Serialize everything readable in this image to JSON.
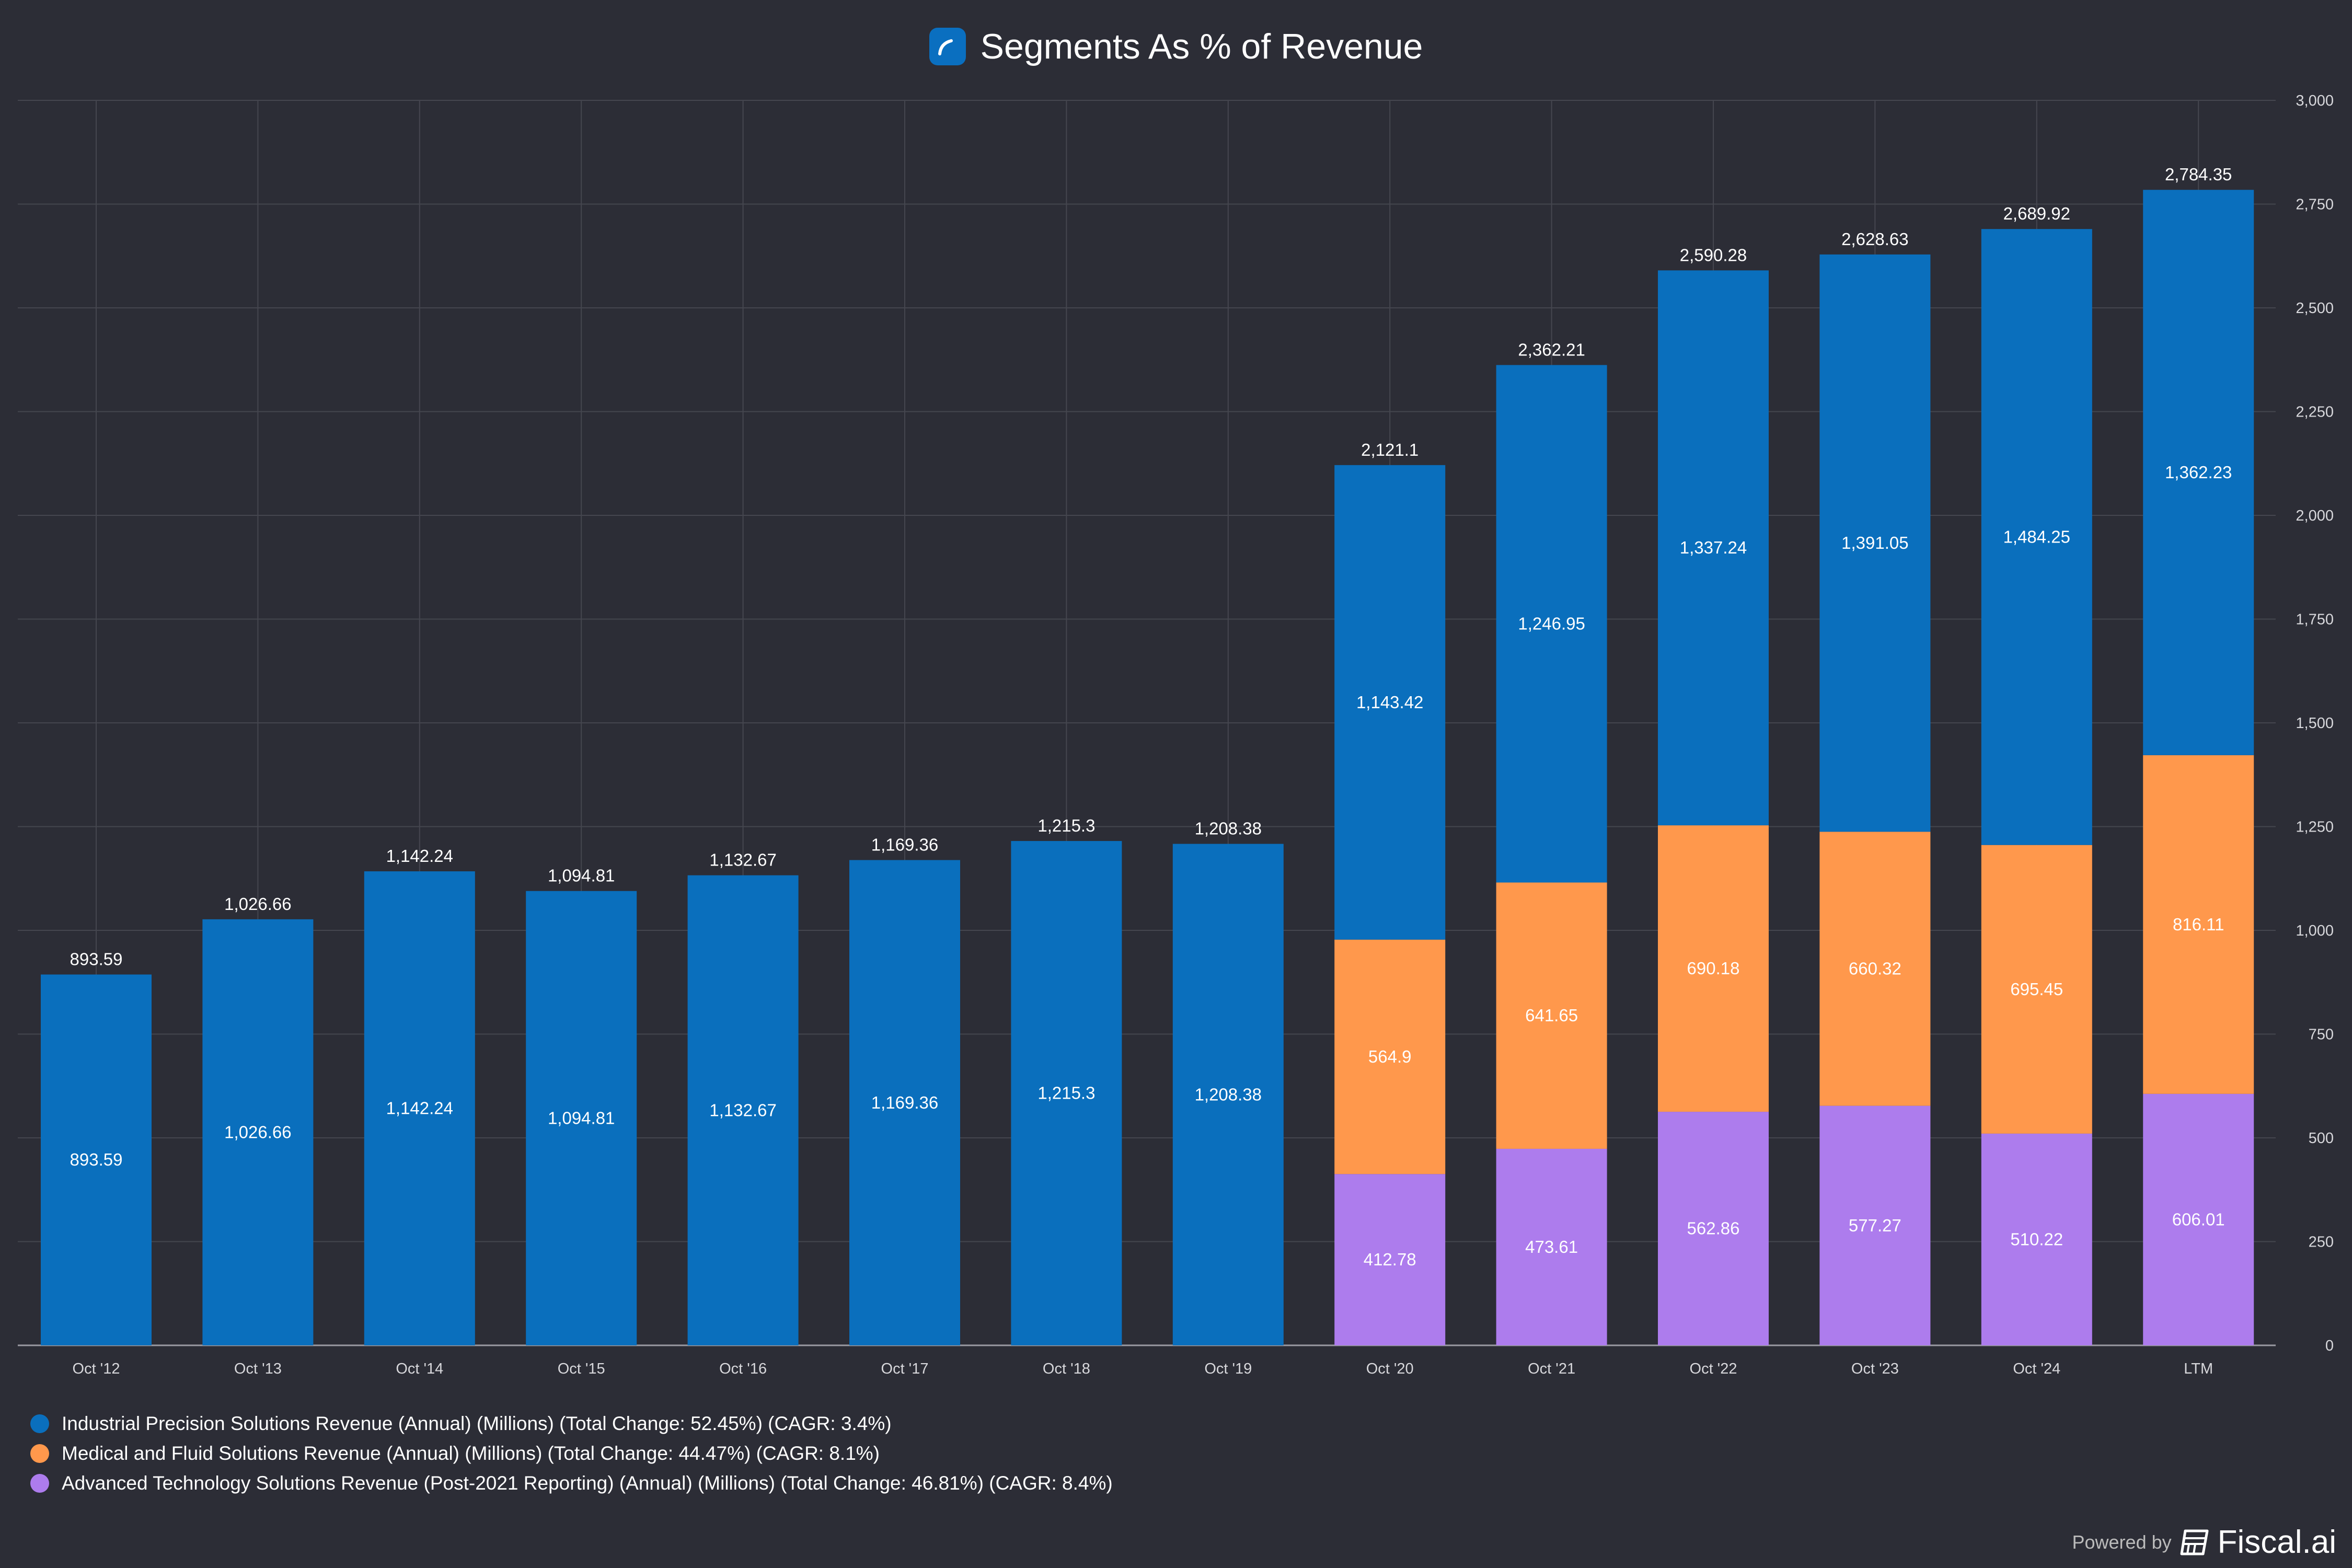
{
  "title": "Segments As % of Revenue",
  "footer": {
    "powered_by": "Powered by",
    "brand": "Fiscal.ai"
  },
  "colors": {
    "background": "#2c2d36",
    "industrial": "#0a6fbd",
    "medical": "#ff984c",
    "advanced": "#ad7ced"
  },
  "chart_data": {
    "type": "bar",
    "stacked": true,
    "title": "Segments As % of Revenue",
    "categories": [
      "Oct '12",
      "Oct '13",
      "Oct '14",
      "Oct '15",
      "Oct '16",
      "Oct '17",
      "Oct '18",
      "Oct '19",
      "Oct '20",
      "Oct '21",
      "Oct '22",
      "Oct '23",
      "Oct '24",
      "LTM"
    ],
    "series": [
      {
        "name": "Advanced Technology Solutions Revenue (Post-2021 Reporting) (Annual) (Millions) (Total Change: 46.81%) (CAGR: 8.4%)",
        "color": "#ad7ced",
        "values": [
          null,
          null,
          null,
          null,
          null,
          null,
          null,
          null,
          412.78,
          473.61,
          562.86,
          577.27,
          510.22,
          606.01
        ],
        "labels": [
          "",
          "",
          "",
          "",
          "",
          "",
          "",
          "",
          "412.78",
          "473.61",
          "562.86",
          "577.27",
          "510.22",
          "606.01"
        ]
      },
      {
        "name": "Medical and Fluid Solutions Revenue (Annual) (Millions) (Total Change: 44.47%) (CAGR: 8.1%)",
        "color": "#ff984c",
        "values": [
          null,
          null,
          null,
          null,
          null,
          null,
          null,
          null,
          564.9,
          641.65,
          690.18,
          660.32,
          695.45,
          816.11
        ],
        "labels": [
          "",
          "",
          "",
          "",
          "",
          "",
          "",
          "",
          "564.9",
          "641.65",
          "690.18",
          "660.32",
          "695.45",
          "816.11"
        ]
      },
      {
        "name": "Industrial Precision Solutions Revenue (Annual) (Millions) (Total Change: 52.45%) (CAGR: 3.4%)",
        "color": "#0a6fbd",
        "values": [
          893.59,
          1026.66,
          1142.24,
          1094.81,
          1132.67,
          1169.36,
          1215.3,
          1208.38,
          1143.42,
          1246.95,
          1337.24,
          1391.05,
          1484.25,
          1362.23
        ],
        "labels": [
          "893.59",
          "1,026.66",
          "1,142.24",
          "1,094.81",
          "1,132.67",
          "1,169.36",
          "1,215.3",
          "1,208.38",
          "1,143.42",
          "1,246.95",
          "1,337.24",
          "1,391.05",
          "1,484.25",
          "1,362.23"
        ]
      }
    ],
    "totals": [
      "893.59",
      "1,026.66",
      "1,142.24",
      "1,094.81",
      "1,132.67",
      "1,169.36",
      "1,215.3",
      "1,208.38",
      "2,121.1",
      "2,362.21",
      "2,590.28",
      "2,628.63",
      "2,689.92",
      "2,784.35"
    ],
    "ylim": [
      0,
      3000
    ],
    "yticks": [
      "0",
      "250",
      "500",
      "750",
      "1,000",
      "1,250",
      "1,500",
      "1,750",
      "2,000",
      "2,250",
      "2,500",
      "2,750",
      "3,000"
    ],
    "y_axis_position": "right",
    "grid": true,
    "legend_position": "bottom-left",
    "legend": [
      "Industrial Precision Solutions Revenue (Annual) (Millions) (Total Change: 52.45%) (CAGR: 3.4%)",
      "Medical and Fluid Solutions Revenue (Annual) (Millions) (Total Change: 44.47%) (CAGR: 8.1%)",
      "Advanced Technology Solutions Revenue (Post-2021 Reporting) (Annual) (Millions) (Total Change: 46.81%) (CAGR: 8.4%)"
    ]
  }
}
